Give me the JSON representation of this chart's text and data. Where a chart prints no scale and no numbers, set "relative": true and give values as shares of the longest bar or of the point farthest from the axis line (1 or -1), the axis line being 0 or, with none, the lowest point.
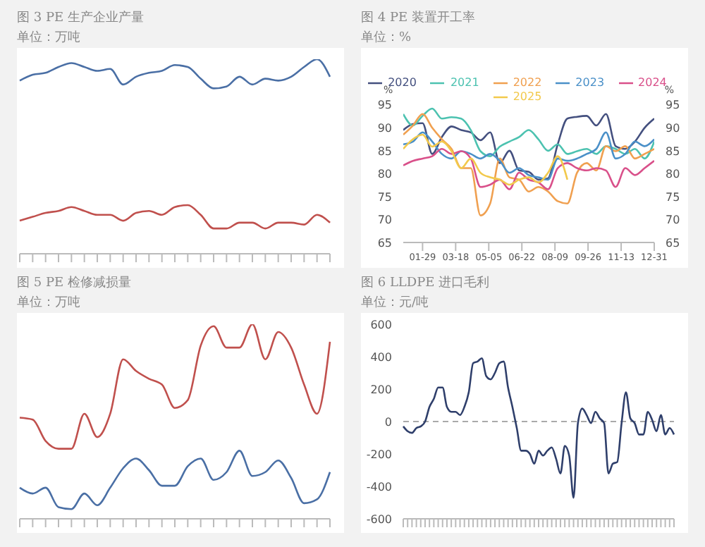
{
  "chart_data": [
    {
      "type": "line",
      "title": "图 3 PE 生产企业产量",
      "subtitle": "单位：万吨",
      "relative": true,
      "legend": false,
      "grid": false,
      "categories": [
        null,
        null,
        null,
        null,
        null,
        null,
        null,
        null,
        null,
        null,
        null,
        null,
        null,
        null,
        null,
        null,
        null,
        null,
        null,
        null,
        null,
        null,
        null,
        null,
        null
      ],
      "series": [
        {
          "color": "#4a6fa5",
          "values": [
            0.89,
            0.92,
            0.93,
            0.96,
            0.98,
            0.96,
            0.94,
            0.95,
            0.87,
            0.91,
            0.93,
            0.94,
            0.97,
            0.96,
            0.9,
            0.85,
            0.86,
            0.91,
            0.87,
            0.9,
            0.89,
            0.91,
            0.96,
            1,
            0.91
          ]
        },
        {
          "color": "#c0504d",
          "values": [
            0.17,
            0.19,
            0.21,
            0.22,
            0.24,
            0.22,
            0.2,
            0.2,
            0.17,
            0.21,
            0.22,
            0.2,
            0.24,
            0.25,
            0.2,
            0.13,
            0.13,
            0.16,
            0.16,
            0.13,
            0.16,
            0.16,
            0.15,
            0.2,
            0.16
          ]
        }
      ]
    },
    {
      "type": "line",
      "title": "图 4 PE 装置开工率",
      "subtitle": "单位：%",
      "ylabel": "%",
      "y2label": "%",
      "legend": "top",
      "grid": false,
      "x": [
        "--01-01",
        "--01-15",
        "--01-29",
        "--02-12",
        "--02-26",
        "--03-12",
        "--03-26",
        "--04-09",
        "--04-23",
        "--05-07",
        "--05-21",
        "--06-04",
        "--06-18",
        "--07-02",
        "--07-16",
        "--07-30",
        "--08-13",
        "--08-27",
        "--09-10",
        "--09-24",
        "--10-08",
        "--10-22",
        "--11-05",
        "--11-19",
        "--12-03",
        "--12-17",
        "--12-31"
      ],
      "xlim": [
        "--01-01",
        "--12-31"
      ],
      "xticks": [
        {
          "value": "--01-29",
          "label": "01-29"
        },
        {
          "value": "--03-18",
          "label": "03-18"
        },
        {
          "value": "--05-05",
          "label": "05-05"
        },
        {
          "value": "--06-22",
          "label": "06-22"
        },
        {
          "value": "--08-09",
          "label": "08-09"
        },
        {
          "value": "--09-26",
          "label": "09-26"
        },
        {
          "value": "--11-13",
          "label": "11-13"
        },
        {
          "value": "--12-31",
          "label": "12-31"
        }
      ],
      "ylim": [
        65,
        95
      ],
      "yticks": [
        65,
        70,
        75,
        80,
        85,
        90,
        95
      ],
      "y2lim": [
        65,
        95
      ],
      "y2ticks": [
        65,
        70,
        75,
        80,
        85,
        90,
        95
      ],
      "series": [
        {
          "name": "2020",
          "color": "#44507f",
          "values": [
            89.5,
            90.8,
            91,
            84.3,
            88,
            90.3,
            89.5,
            89,
            87.3,
            89,
            82.3,
            85,
            80.7,
            80.4,
            78.7,
            79,
            86.4,
            92,
            92.4,
            92.6,
            90.5,
            93,
            86,
            85.4,
            87,
            90,
            92
          ]
        },
        {
          "name": "2021",
          "color": "#4cc2b0",
          "values": [
            93,
            90.5,
            92.6,
            94.2,
            92,
            92.3,
            92,
            89.5,
            84.9,
            83.8,
            85.9,
            87,
            88,
            89.5,
            87.5,
            85,
            86.4,
            84.3,
            84.9,
            85.4,
            84.3,
            86,
            85.4,
            84.3,
            85.4,
            83.3,
            87
          ]
        },
        {
          "name": "2022",
          "color": "#f0a050",
          "values": [
            88.5,
            90.5,
            93,
            90,
            87.5,
            85.4,
            81.2,
            81.2,
            70.9,
            73.5,
            83.3,
            79.2,
            78.7,
            76.1,
            77.1,
            76.1,
            74,
            73.5,
            80.2,
            82.3,
            80.7,
            86,
            84.9,
            86,
            83.3,
            84.3,
            85.4
          ]
        },
        {
          "name": "2023",
          "color": "#4a90c8",
          "values": [
            86.4,
            87,
            89,
            87,
            84.3,
            83.3,
            84.9,
            84.3,
            83.3,
            84.3,
            82.8,
            80.2,
            81.2,
            79.7,
            79.2,
            78.7,
            83.3,
            82.8,
            83.3,
            84.3,
            85.4,
            89,
            83.3,
            84.3,
            87,
            86,
            87.5
          ]
        },
        {
          "name": "2024",
          "color": "#d9508a",
          "values": [
            81.8,
            82.8,
            83.3,
            83.8,
            85.4,
            84.3,
            84.9,
            83.3,
            77.1,
            77.6,
            78.7,
            76.6,
            80.2,
            78.7,
            78.1,
            76.6,
            81.2,
            82.3,
            81.2,
            80.7,
            81.2,
            80.7,
            77.1,
            81.2,
            79.7,
            81.2,
            82.8
          ]
        },
        {
          "name": "2025",
          "color": "#f2c94c",
          "values": [
            85.4,
            87.5,
            88.5,
            85.9,
            87,
            84.9,
            81.2,
            83.3,
            80.2,
            79.2,
            78.7,
            77.6,
            78.7,
            79.2,
            78.1,
            80.2,
            83.8,
            78.7,
            null,
            null,
            null,
            null,
            null,
            null,
            null,
            null,
            null
          ]
        }
      ]
    },
    {
      "type": "line",
      "title": "图 5 PE 检修减损量",
      "subtitle": "单位：万吨",
      "relative": true,
      "legend": false,
      "grid": false,
      "categories": [
        null,
        null,
        null,
        null,
        null,
        null,
        null,
        null,
        null,
        null,
        null,
        null,
        null,
        null,
        null,
        null,
        null,
        null,
        null,
        null,
        null,
        null,
        null,
        null,
        null
      ],
      "series": [
        {
          "color": "#c0504d",
          "values": [
            0.52,
            0.51,
            0.4,
            0.36,
            0.36,
            0.54,
            0.42,
            0.54,
            0.82,
            0.76,
            0.72,
            0.69,
            0.57,
            0.61,
            0.89,
            0.99,
            0.88,
            0.88,
            1,
            0.82,
            0.96,
            0.88,
            0.69,
            0.54,
            0.91
          ]
        },
        {
          "color": "#4a6fa5",
          "values": [
            0.16,
            0.13,
            0.16,
            0.06,
            0.05,
            0.13,
            0.07,
            0.16,
            0.26,
            0.31,
            0.25,
            0.17,
            0.17,
            0.27,
            0.31,
            0.2,
            0.24,
            0.35,
            0.22,
            0.24,
            0.3,
            0.21,
            0.08,
            0.1,
            0.24
          ]
        }
      ]
    },
    {
      "type": "line",
      "title": "图 6 LLDPE 进口毛利",
      "subtitle": "单位：元/吨",
      "legend": false,
      "grid": false,
      "ylim": [
        -600,
        600
      ],
      "yticks": [
        -600,
        -400,
        -200,
        0,
        200,
        400,
        600
      ],
      "ref_lines": [
        {
          "axis": "y",
          "value": 0,
          "color": "#aaaaaa",
          "line_style": "dashed"
        }
      ],
      "categories": [
        null,
        null,
        null,
        null,
        null,
        null,
        null,
        null,
        null,
        null,
        null,
        null,
        null,
        null,
        null,
        null,
        null,
        null,
        null,
        null,
        null,
        null,
        null,
        null,
        null,
        null,
        null,
        null,
        null,
        null,
        null,
        null,
        null,
        null,
        null,
        null,
        null,
        null,
        null,
        null,
        null,
        null,
        null,
        null,
        null,
        null,
        null,
        null,
        null,
        null,
        null,
        null,
        null,
        null,
        null,
        null,
        null,
        null,
        null,
        null,
        null,
        null,
        null
      ],
      "series": [
        {
          "color": "#2f3f6b",
          "values": [
            -30,
            -60,
            -70,
            -40,
            -30,
            0,
            90,
            140,
            210,
            210,
            90,
            60,
            60,
            40,
            90,
            180,
            360,
            370,
            390,
            280,
            260,
            300,
            360,
            370,
            210,
            90,
            -40,
            -180,
            -180,
            -200,
            -260,
            -180,
            -210,
            -180,
            -160,
            -230,
            -320,
            -150,
            -210,
            -470,
            -10,
            80,
            40,
            -10,
            60,
            20,
            -10,
            -320,
            -260,
            -250,
            -10,
            180,
            20,
            -10,
            -80,
            -80,
            60,
            10,
            -60,
            40,
            -80,
            -40,
            -80
          ]
        }
      ]
    }
  ]
}
